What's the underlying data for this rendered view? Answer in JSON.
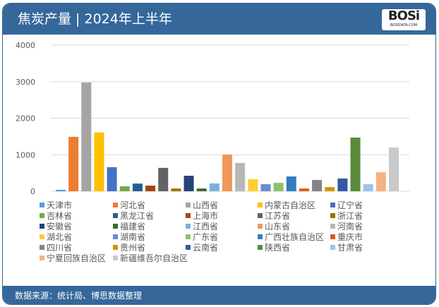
{
  "header": {
    "title": "焦炭产量 | 2024年上半年",
    "logo_text": "BOSi",
    "logo_sub": "BOSIDATA.COM"
  },
  "footer": {
    "source": "数据来源：统计局、博思数据整理"
  },
  "colors": {
    "header_bg": "#35679a"
  },
  "chart_data": {
    "type": "bar",
    "title": "",
    "xlabel": "",
    "ylabel": "",
    "ylim": [
      0,
      4000
    ],
    "yticks": [
      "0",
      "1000",
      "2000",
      "3000",
      "4000"
    ],
    "grid": true,
    "legend_placement": "bottom",
    "categories": [
      "天津市",
      "河北省",
      "山西省",
      "内蒙古自治区",
      "辽宁省",
      "吉林省",
      "黑龙江省",
      "上海市",
      "江苏省",
      "浙江省",
      "安徽省",
      "福建省",
      "江西省",
      "山东省",
      "河南省",
      "湖北省",
      "湖南省",
      "广东省",
      "广西壮族自治区",
      "重庆市",
      "四川省",
      "贵州省",
      "云南省",
      "陕西省",
      "甘肃省",
      "宁夏回族自治区",
      "新疆维吾尔自治区"
    ],
    "values": [
      40,
      1490,
      2980,
      1610,
      660,
      135,
      210,
      155,
      640,
      75,
      425,
      75,
      215,
      1005,
      775,
      330,
      195,
      230,
      405,
      75,
      310,
      115,
      350,
      1470,
      195,
      520,
      1200
    ],
    "colors": [
      "#5b9bd5",
      "#ed7d31",
      "#a5a5a5",
      "#ffc000",
      "#4472c4",
      "#70ad47",
      "#255e91",
      "#9e480e",
      "#636363",
      "#997300",
      "#264478",
      "#43682b",
      "#7cafdd",
      "#f1975a",
      "#b7b7b7",
      "#ffcd33",
      "#698ed0",
      "#8cc168",
      "#327dc2",
      "#d26012",
      "#848484",
      "#cc9a00",
      "#335aa1",
      "#5a8a39",
      "#9dc3e6",
      "#f4b183",
      "#c9c9c9"
    ]
  }
}
